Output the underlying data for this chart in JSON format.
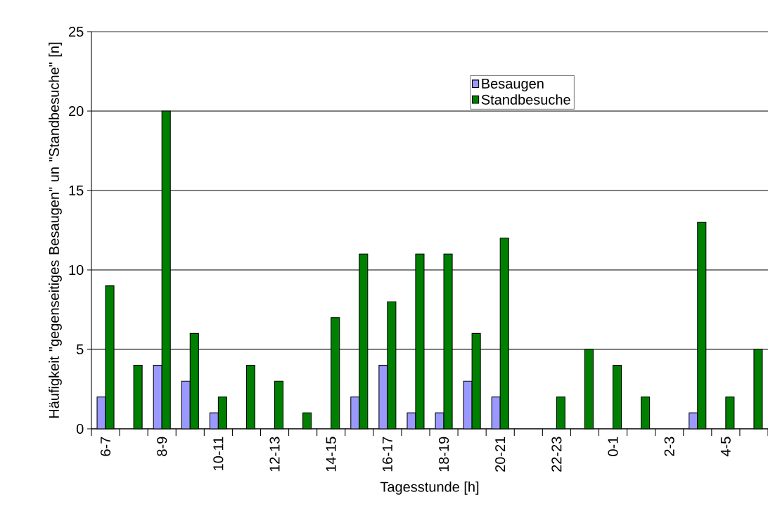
{
  "chart_data": {
    "type": "bar",
    "xlabel": "Tagesstunde [h]",
    "ylabel": "Häufigkeit \"gegenseitiges Besaugen\" un \"Standbesuche\" [n]",
    "categories": [
      "6-7",
      null,
      "8-9",
      null,
      "10-11",
      null,
      "12-13",
      null,
      "14-15",
      null,
      "16-17",
      null,
      "18-19",
      null,
      "20-21",
      null,
      "22-23",
      null,
      "0-1",
      null,
      "2-3",
      null,
      "4-5",
      null
    ],
    "series": [
      {
        "name": "Besaugen",
        "color": "#9999ff",
        "values": [
          2,
          null,
          4,
          3,
          1,
          null,
          null,
          null,
          null,
          2,
          4,
          1,
          1,
          3,
          2,
          null,
          null,
          null,
          null,
          null,
          null,
          1,
          null,
          null
        ]
      },
      {
        "name": "Standbesuche",
        "color": "#008000",
        "values": [
          9,
          4,
          20,
          6,
          2,
          4,
          3,
          1,
          7,
          11,
          8,
          11,
          11,
          6,
          12,
          null,
          2,
          5,
          4,
          2,
          null,
          13,
          2,
          5
        ]
      }
    ],
    "ylim": [
      0,
      25
    ],
    "yticks": [
      0,
      5,
      10,
      15,
      20,
      25
    ],
    "grid": "y",
    "legend": "top right"
  }
}
